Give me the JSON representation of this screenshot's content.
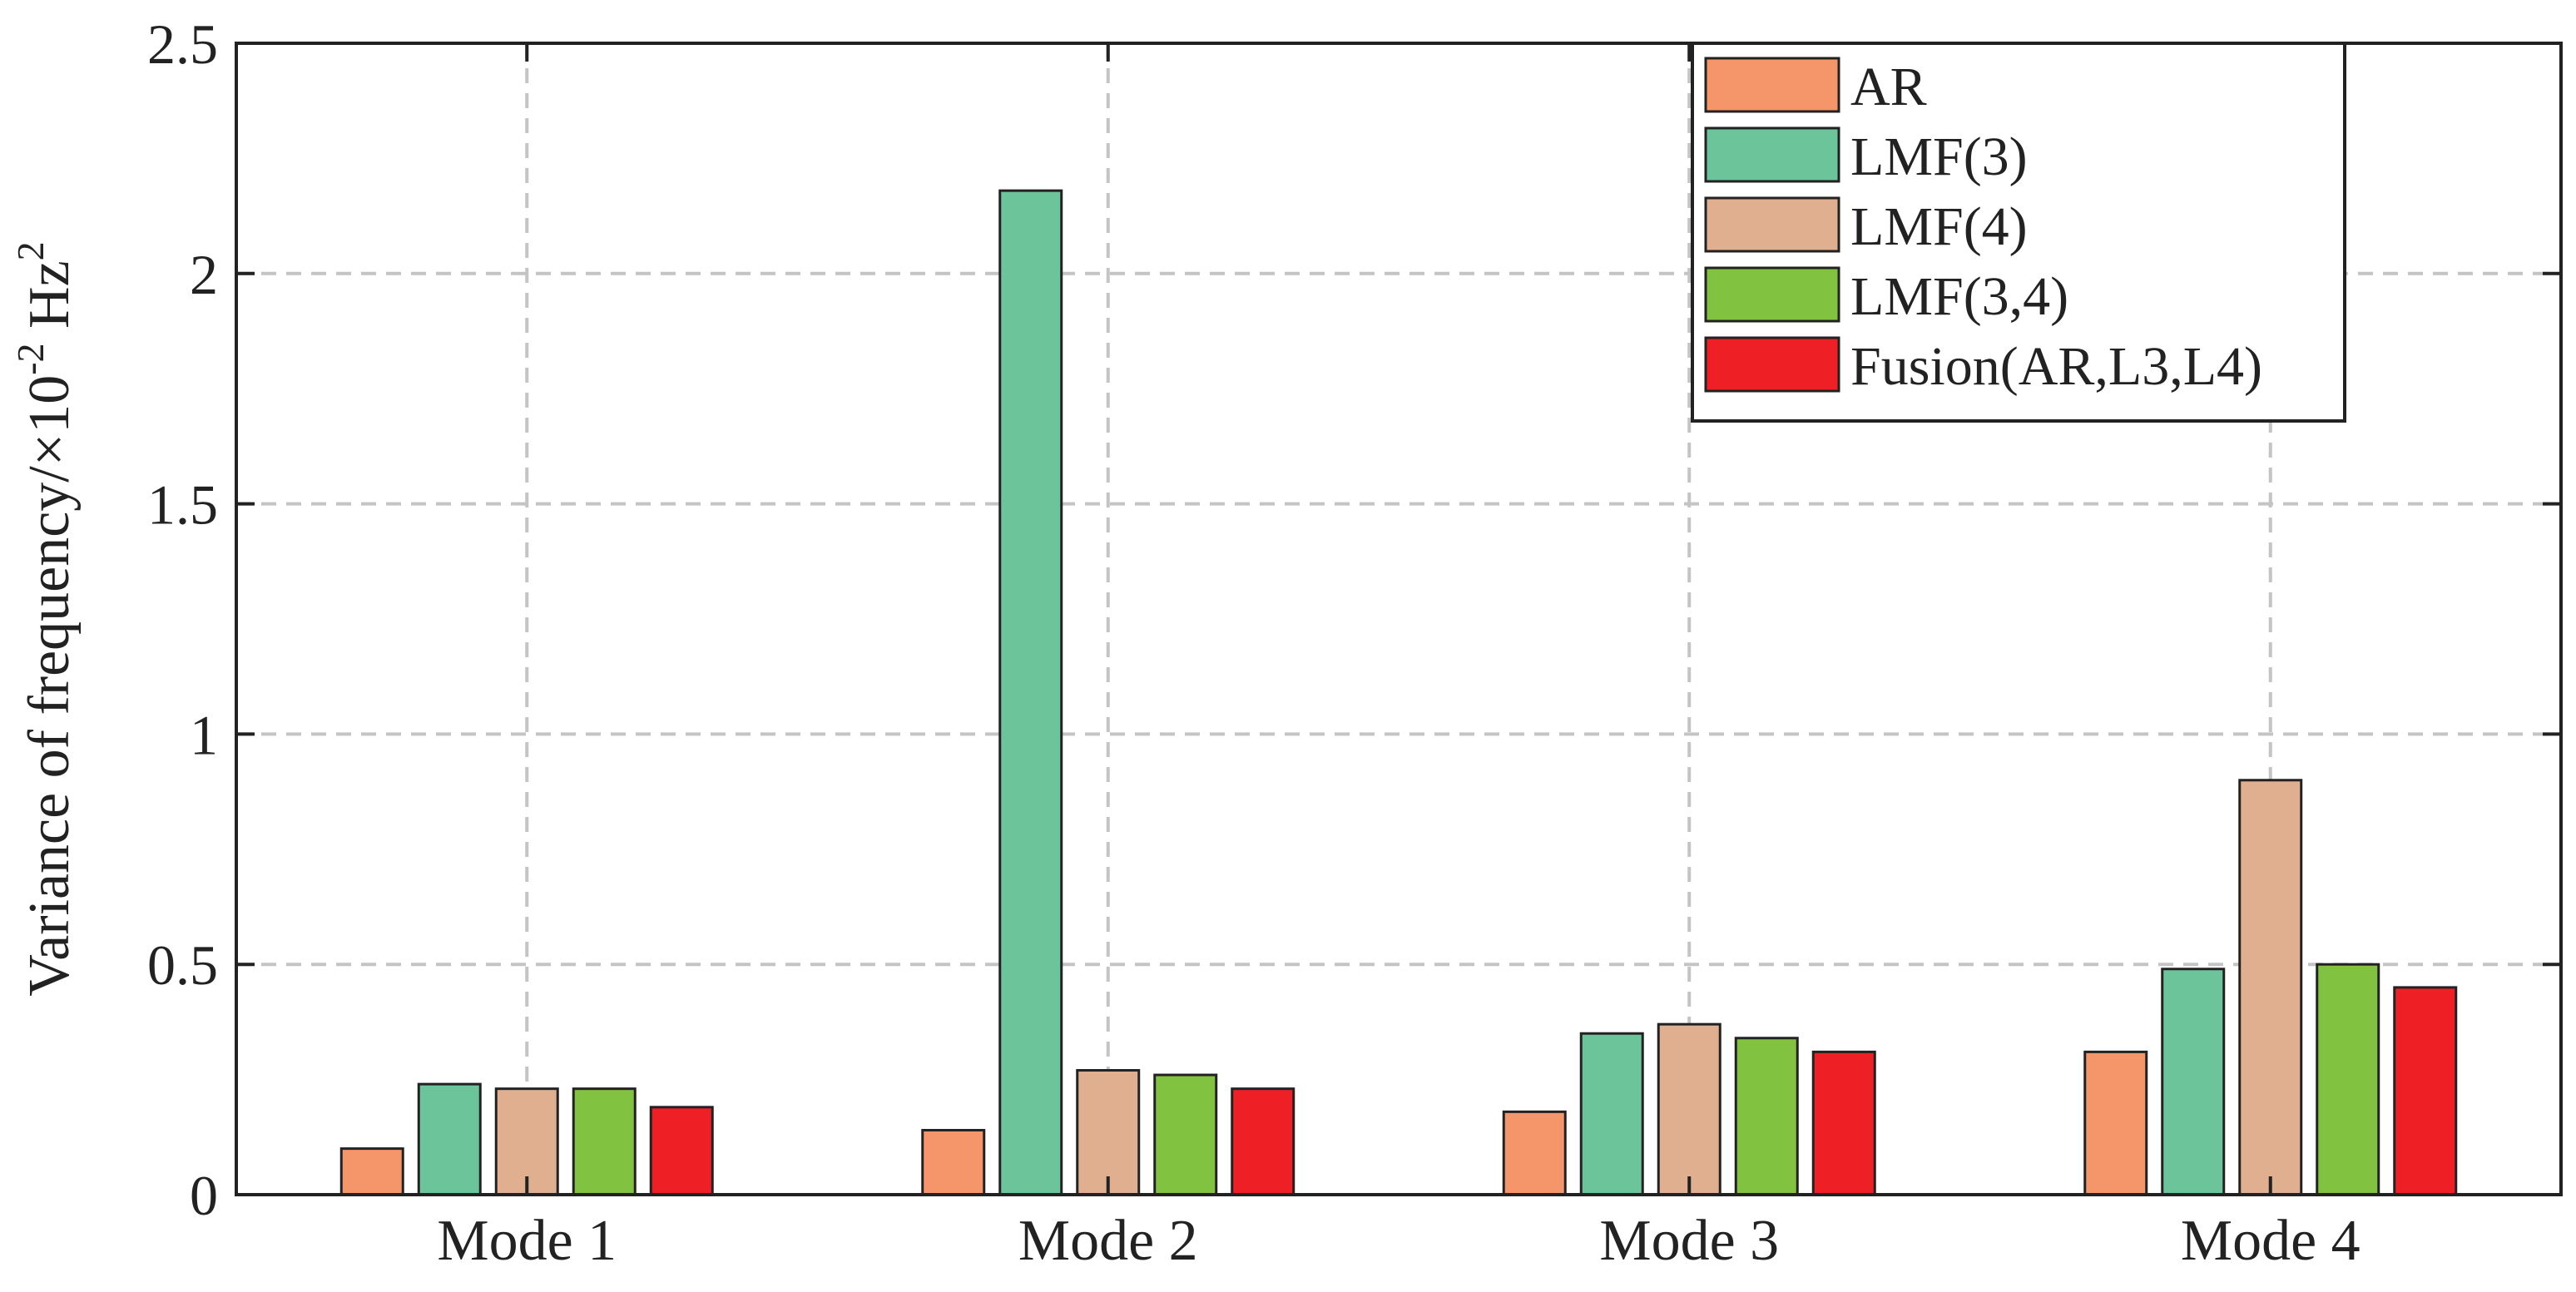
{
  "chart_data": {
    "type": "bar",
    "categories": [
      "Mode 1",
      "Mode 2",
      "Mode 3",
      "Mode 4"
    ],
    "series": [
      {
        "name": "AR",
        "color": "#F5966A",
        "values": [
          0.1,
          0.14,
          0.18,
          0.31
        ]
      },
      {
        "name": "LMF(3)",
        "color": "#6CC49A",
        "values": [
          0.24,
          2.18,
          0.35,
          0.49
        ]
      },
      {
        "name": "LMF(4)",
        "color": "#DFAF8F",
        "values": [
          0.23,
          0.27,
          0.37,
          0.9
        ]
      },
      {
        "name": "LMF(3,4)",
        "color": "#82C241",
        "values": [
          0.23,
          0.26,
          0.34,
          0.5
        ]
      },
      {
        "name": "Fusion(AR,L3,L4)",
        "color": "#EE1F25",
        "values": [
          0.19,
          0.23,
          0.31,
          0.45
        ]
      }
    ],
    "title": "",
    "xlabel": "",
    "ylabel": {
      "prefix": "Variance of frequency/×10",
      "exp1": "-2",
      "mid": " Hz",
      "exp2": "2"
    },
    "ylim": [
      0,
      2.5
    ],
    "yticks": [
      0,
      0.5,
      1,
      1.5,
      2,
      2.5
    ],
    "ytick_labels": [
      "0",
      "0.5",
      "1",
      "1.5",
      "2",
      "2.5"
    ],
    "grid": true,
    "legend_position": "top-right"
  }
}
